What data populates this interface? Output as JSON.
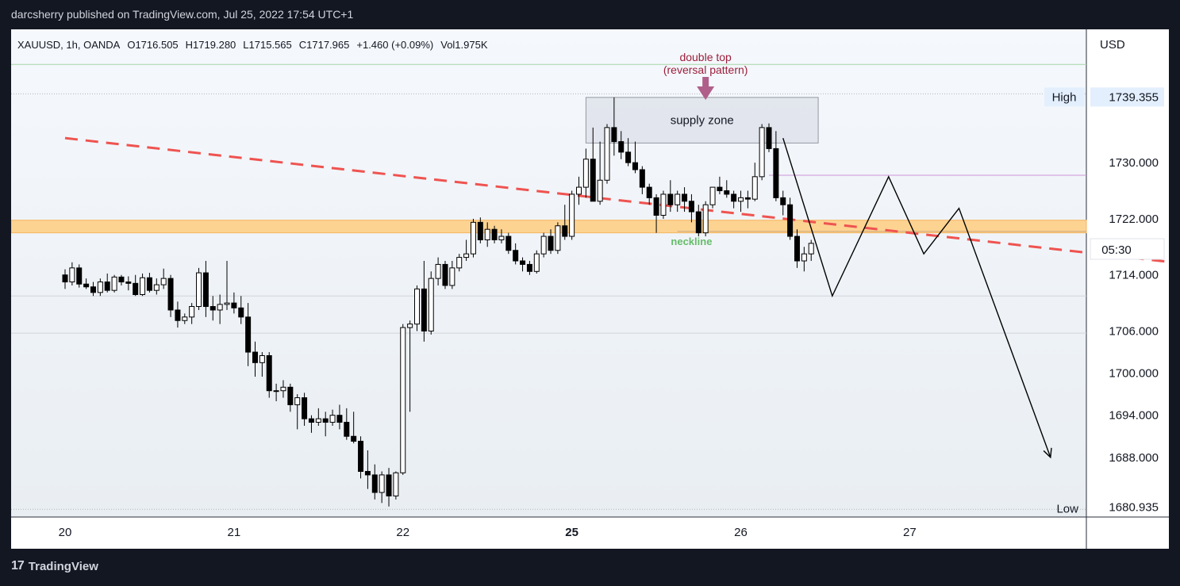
{
  "header": {
    "publisher_line": "darcsherry published on TradingView.com, Jul 25, 2022 17:54 UTC+1"
  },
  "footer": {
    "brand": "TradingView",
    "logo_glyph": "17"
  },
  "chart_data": {
    "type": "candlestick",
    "symbol_line": {
      "symbol": "XAUUSD, 1h, OANDA",
      "open": "O1716.505",
      "high": "H1719.280",
      "low": "L1715.565",
      "close": "C1717.965",
      "change": "+1.460 (+0.09%)",
      "volume": "Vol1.975K"
    },
    "currency": "USD",
    "y_ticks": [
      "1730.000",
      "1722.000",
      "1714.000",
      "1706.000",
      "1700.000",
      "1694.000",
      "1688.000"
    ],
    "ylim": [
      1679.5,
      1749
    ],
    "x_ticks": [
      {
        "label": "20",
        "bar": 0
      },
      {
        "label": "21",
        "bar": 24
      },
      {
        "label": "22",
        "bar": 48
      },
      {
        "label": "25",
        "bar": 72
      },
      {
        "label": "26",
        "bar": 96
      },
      {
        "label": "27",
        "bar": 120
      }
    ],
    "high_marker": {
      "label": "High",
      "value": "1739.355"
    },
    "low_marker": {
      "label": "Low",
      "value": "1680.935"
    },
    "countdown": "05:30",
    "candles": [
      [
        1714.0,
        1714.8,
        1712.0,
        1713.0
      ],
      [
        1713.0,
        1715.8,
        1712.5,
        1715.0
      ],
      [
        1715.0,
        1715.5,
        1712.2,
        1712.7
      ],
      [
        1712.7,
        1713.5,
        1712.0,
        1712.3
      ],
      [
        1712.3,
        1713.0,
        1711.0,
        1711.5
      ],
      [
        1711.5,
        1713.5,
        1711.0,
        1713.0
      ],
      [
        1713.0,
        1714.2,
        1711.5,
        1711.8
      ],
      [
        1711.8,
        1714.0,
        1711.5,
        1713.7
      ],
      [
        1713.7,
        1714.0,
        1712.5,
        1713.0
      ],
      [
        1713.0,
        1713.8,
        1711.8,
        1712.8
      ],
      [
        1712.8,
        1714.0,
        1711.0,
        1711.2
      ],
      [
        1711.2,
        1714.2,
        1711.0,
        1713.6
      ],
      [
        1713.6,
        1714.3,
        1711.5,
        1711.8
      ],
      [
        1711.8,
        1713.5,
        1711.2,
        1712.6
      ],
      [
        1712.6,
        1714.9,
        1712.0,
        1713.5
      ],
      [
        1713.5,
        1714.0,
        1708.0,
        1709.0
      ],
      [
        1709.0,
        1710.2,
        1706.5,
        1707.5
      ],
      [
        1707.5,
        1708.5,
        1707.0,
        1708.0
      ],
      [
        1708.0,
        1710.0,
        1707.0,
        1709.5
      ],
      [
        1709.5,
        1715.0,
        1709.0,
        1714.3
      ],
      [
        1714.3,
        1716.0,
        1708.0,
        1709.5
      ],
      [
        1709.5,
        1711.0,
        1707.5,
        1709.0
      ],
      [
        1709.0,
        1711.2,
        1707.0,
        1709.8
      ],
      [
        1709.8,
        1716.0,
        1709.0,
        1710.0
      ],
      [
        1710.0,
        1711.5,
        1708.5,
        1709.3
      ],
      [
        1709.3,
        1711.0,
        1707.0,
        1708.0
      ],
      [
        1708.0,
        1710.0,
        1701.0,
        1703.0
      ],
      [
        1703.0,
        1704.5,
        1699.5,
        1701.5
      ],
      [
        1701.5,
        1703.0,
        1699.5,
        1702.5
      ],
      [
        1702.5,
        1703.0,
        1696.5,
        1697.5
      ],
      [
        1697.5,
        1698.5,
        1696.0,
        1697.5
      ],
      [
        1697.5,
        1699.0,
        1696.5,
        1698.0
      ],
      [
        1698.0,
        1698.5,
        1694.5,
        1695.5
      ],
      [
        1695.5,
        1697.0,
        1692.0,
        1696.5
      ],
      [
        1696.5,
        1697.2,
        1692.5,
        1693.5
      ],
      [
        1693.5,
        1694.0,
        1691.5,
        1693.0
      ],
      [
        1693.0,
        1695.0,
        1692.5,
        1693.5
      ],
      [
        1693.5,
        1694.5,
        1691.0,
        1693.0
      ],
      [
        1693.0,
        1694.8,
        1692.5,
        1694.0
      ],
      [
        1694.0,
        1695.5,
        1692.0,
        1693.0
      ],
      [
        1693.0,
        1695.0,
        1690.5,
        1691.0
      ],
      [
        1691.0,
        1694.5,
        1690.0,
        1690.3
      ],
      [
        1690.3,
        1691.0,
        1685.0,
        1686.0
      ],
      [
        1686.0,
        1689.0,
        1683.5,
        1685.5
      ],
      [
        1685.5,
        1687.0,
        1682.0,
        1683.0
      ],
      [
        1683.0,
        1686.0,
        1681.5,
        1685.5
      ],
      [
        1685.5,
        1686.5,
        1681.0,
        1682.5
      ],
      [
        1682.5,
        1686.0,
        1682.0,
        1685.8
      ],
      [
        1685.8,
        1707.0,
        1685.5,
        1706.5
      ],
      [
        1706.5,
        1707.5,
        1694.5,
        1707.0
      ],
      [
        1707.0,
        1712.5,
        1706.0,
        1712.0
      ],
      [
        1712.0,
        1716.0,
        1704.5,
        1706.0
      ],
      [
        1706.0,
        1714.5,
        1705.5,
        1713.5
      ],
      [
        1713.5,
        1716.5,
        1712.5,
        1715.5
      ],
      [
        1715.5,
        1716.0,
        1712.0,
        1712.5
      ],
      [
        1712.5,
        1716.0,
        1712.0,
        1715.0
      ],
      [
        1715.0,
        1717.0,
        1714.5,
        1716.5
      ],
      [
        1716.5,
        1719.0,
        1716.0,
        1717.0
      ],
      [
        1717.0,
        1722.0,
        1716.5,
        1721.5
      ],
      [
        1721.5,
        1722.2,
        1718.5,
        1719.0
      ],
      [
        1719.0,
        1721.5,
        1718.0,
        1720.5
      ],
      [
        1720.5,
        1721.0,
        1718.5,
        1719.0
      ],
      [
        1719.0,
        1720.5,
        1718.5,
        1719.5
      ],
      [
        1719.5,
        1720.0,
        1717.0,
        1717.5
      ],
      [
        1717.5,
        1718.5,
        1715.5,
        1716.0
      ],
      [
        1716.0,
        1716.5,
        1714.5,
        1715.5
      ],
      [
        1715.5,
        1716.0,
        1714.0,
        1714.5
      ],
      [
        1714.5,
        1717.5,
        1714.2,
        1717.0
      ],
      [
        1717.0,
        1720.0,
        1716.5,
        1719.5
      ],
      [
        1719.5,
        1720.5,
        1717.0,
        1717.5
      ],
      [
        1717.5,
        1721.5,
        1717.0,
        1721.0
      ],
      [
        1721.0,
        1724.0,
        1719.0,
        1719.5
      ],
      [
        1719.5,
        1726.0,
        1719.0,
        1725.5
      ],
      [
        1725.5,
        1728.0,
        1724.0,
        1726.5
      ],
      [
        1726.5,
        1732.0,
        1725.0,
        1730.5
      ],
      [
        1730.5,
        1735.0,
        1725.0,
        1724.5
      ],
      [
        1724.5,
        1733.0,
        1724.0,
        1727.5
      ],
      [
        1727.5,
        1735.5,
        1727.0,
        1735.0
      ],
      [
        1735.0,
        1739.3,
        1731.0,
        1733.0
      ],
      [
        1733.0,
        1734.5,
        1730.5,
        1731.5
      ],
      [
        1731.5,
        1733.5,
        1729.5,
        1730.0
      ],
      [
        1730.0,
        1733.0,
        1728.5,
        1729.0
      ],
      [
        1729.0,
        1729.5,
        1725.5,
        1726.5
      ],
      [
        1726.5,
        1727.0,
        1724.0,
        1725.0
      ],
      [
        1725.0,
        1725.5,
        1720.0,
        1722.5
      ],
      [
        1722.5,
        1726.0,
        1722.0,
        1725.5
      ],
      [
        1725.5,
        1727.5,
        1723.0,
        1724.0
      ],
      [
        1724.0,
        1726.0,
        1723.0,
        1725.5
      ],
      [
        1725.5,
        1726.5,
        1723.0,
        1724.5
      ],
      [
        1724.5,
        1725.5,
        1721.5,
        1723.0
      ],
      [
        1723.0,
        1724.0,
        1719.5,
        1720.0
      ],
      [
        1720.0,
        1724.5,
        1719.5,
        1724.0
      ],
      [
        1724.0,
        1726.5,
        1723.5,
        1726.5
      ],
      [
        1726.5,
        1728.0,
        1725.5,
        1726.0
      ],
      [
        1726.0,
        1727.5,
        1725.0,
        1725.5
      ],
      [
        1725.5,
        1726.0,
        1723.5,
        1724.5
      ],
      [
        1724.5,
        1726.0,
        1723.0,
        1725.0
      ],
      [
        1725.0,
        1726.0,
        1723.5,
        1724.8
      ],
      [
        1724.8,
        1730.0,
        1724.5,
        1728.0
      ],
      [
        1728.0,
        1735.5,
        1727.5,
        1735.0
      ],
      [
        1735.0,
        1735.6,
        1731.5,
        1732.0
      ],
      [
        1732.0,
        1734.5,
        1724.5,
        1725.0
      ],
      [
        1725.0,
        1726.0,
        1722.5,
        1724.0
      ],
      [
        1724.0,
        1725.0,
        1719.0,
        1719.5
      ],
      [
        1719.5,
        1720.5,
        1715.0,
        1716.0
      ],
      [
        1716.0,
        1718.0,
        1714.5,
        1717.0
      ],
      [
        1717.0,
        1719.0,
        1716.0,
        1718.5
      ]
    ],
    "drawings": {
      "supply_zone": {
        "label": "supply zone",
        "from_bar": 74,
        "to_bar": 107,
        "top": 1739.3,
        "bottom": 1732.8
      },
      "neckline_zone": {
        "label": "neckline",
        "top": 1721.8,
        "bottom": 1720.0,
        "label_bar": 89,
        "label_value": 1718.8,
        "underline_from_bar": 87,
        "underline_value": 1720.2
      },
      "double_top_note": {
        "line1": "double top",
        "line2": "(reversal pattern)",
        "bar": 91
      },
      "trendline": {
        "from_bar": 0,
        "from_value": 1733.5,
        "to_bar": 160,
        "to_value": 1715.5
      },
      "projection": [
        [
          102,
          1733.5
        ],
        [
          109,
          1711.0
        ],
        [
          117,
          1728.0
        ],
        [
          122,
          1717.0
        ],
        [
          127,
          1723.5
        ],
        [
          140,
          1688.0
        ]
      ],
      "hlines": [
        {
          "value": 1744.0,
          "color": "#a5d6a7",
          "style": "solid"
        },
        {
          "value": 1739.8,
          "color": "#b2b5be",
          "style": "dotted"
        },
        {
          "value": 1728.2,
          "color": "#ce93d8",
          "style": "solid",
          "from_bar": 100
        },
        {
          "value": 1711.0,
          "color": "#d1d4dc",
          "style": "solid"
        },
        {
          "value": 1705.7,
          "color": "#d1d4dc",
          "style": "solid"
        },
        {
          "value": 1680.6,
          "color": "#b2b5be",
          "style": "dotted"
        }
      ]
    }
  }
}
